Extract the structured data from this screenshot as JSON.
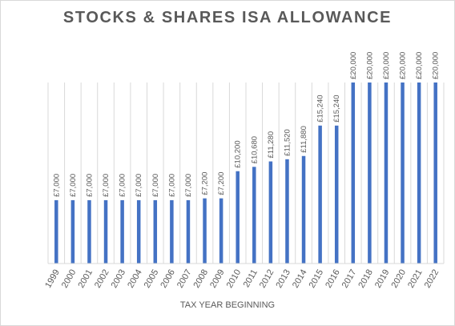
{
  "chart_data": {
    "type": "bar",
    "title": "STOCKS & SHARES ISA ALLOWANCE",
    "xlabel": "TAX YEAR BEGINNING",
    "ylabel": "",
    "ylim": [
      0,
      20000
    ],
    "grid": "vertical",
    "legend": "none",
    "bar_color": "#4472c4",
    "categories": [
      "1999",
      "2000",
      "2001",
      "2002",
      "2003",
      "2004",
      "2005",
      "2006",
      "2007",
      "2008",
      "2009",
      "2010",
      "2011",
      "2012",
      "2013",
      "2014",
      "2015",
      "2016",
      "2017",
      "2018",
      "2019",
      "2020",
      "2021",
      "2022"
    ],
    "values": [
      7000,
      7000,
      7000,
      7000,
      7000,
      7000,
      7000,
      7000,
      7000,
      7200,
      7200,
      10200,
      10680,
      11280,
      11520,
      11880,
      15240,
      15240,
      20000,
      20000,
      20000,
      20000,
      20000,
      20000
    ],
    "data_labels": [
      "£7,000",
      "£7,000",
      "£7,000",
      "£7,000",
      "£7,000",
      "£7,000",
      "£7,000",
      "£7,000",
      "£7,000",
      "£7,200",
      "£7,200",
      "£10,200",
      "£10,680",
      "£11,280",
      "£11,520",
      "£11,880",
      "£15,240",
      "£15,240",
      "£20,000",
      "£20,000",
      "£20,000",
      "£20,000",
      "£20,000",
      "£20,000"
    ]
  }
}
